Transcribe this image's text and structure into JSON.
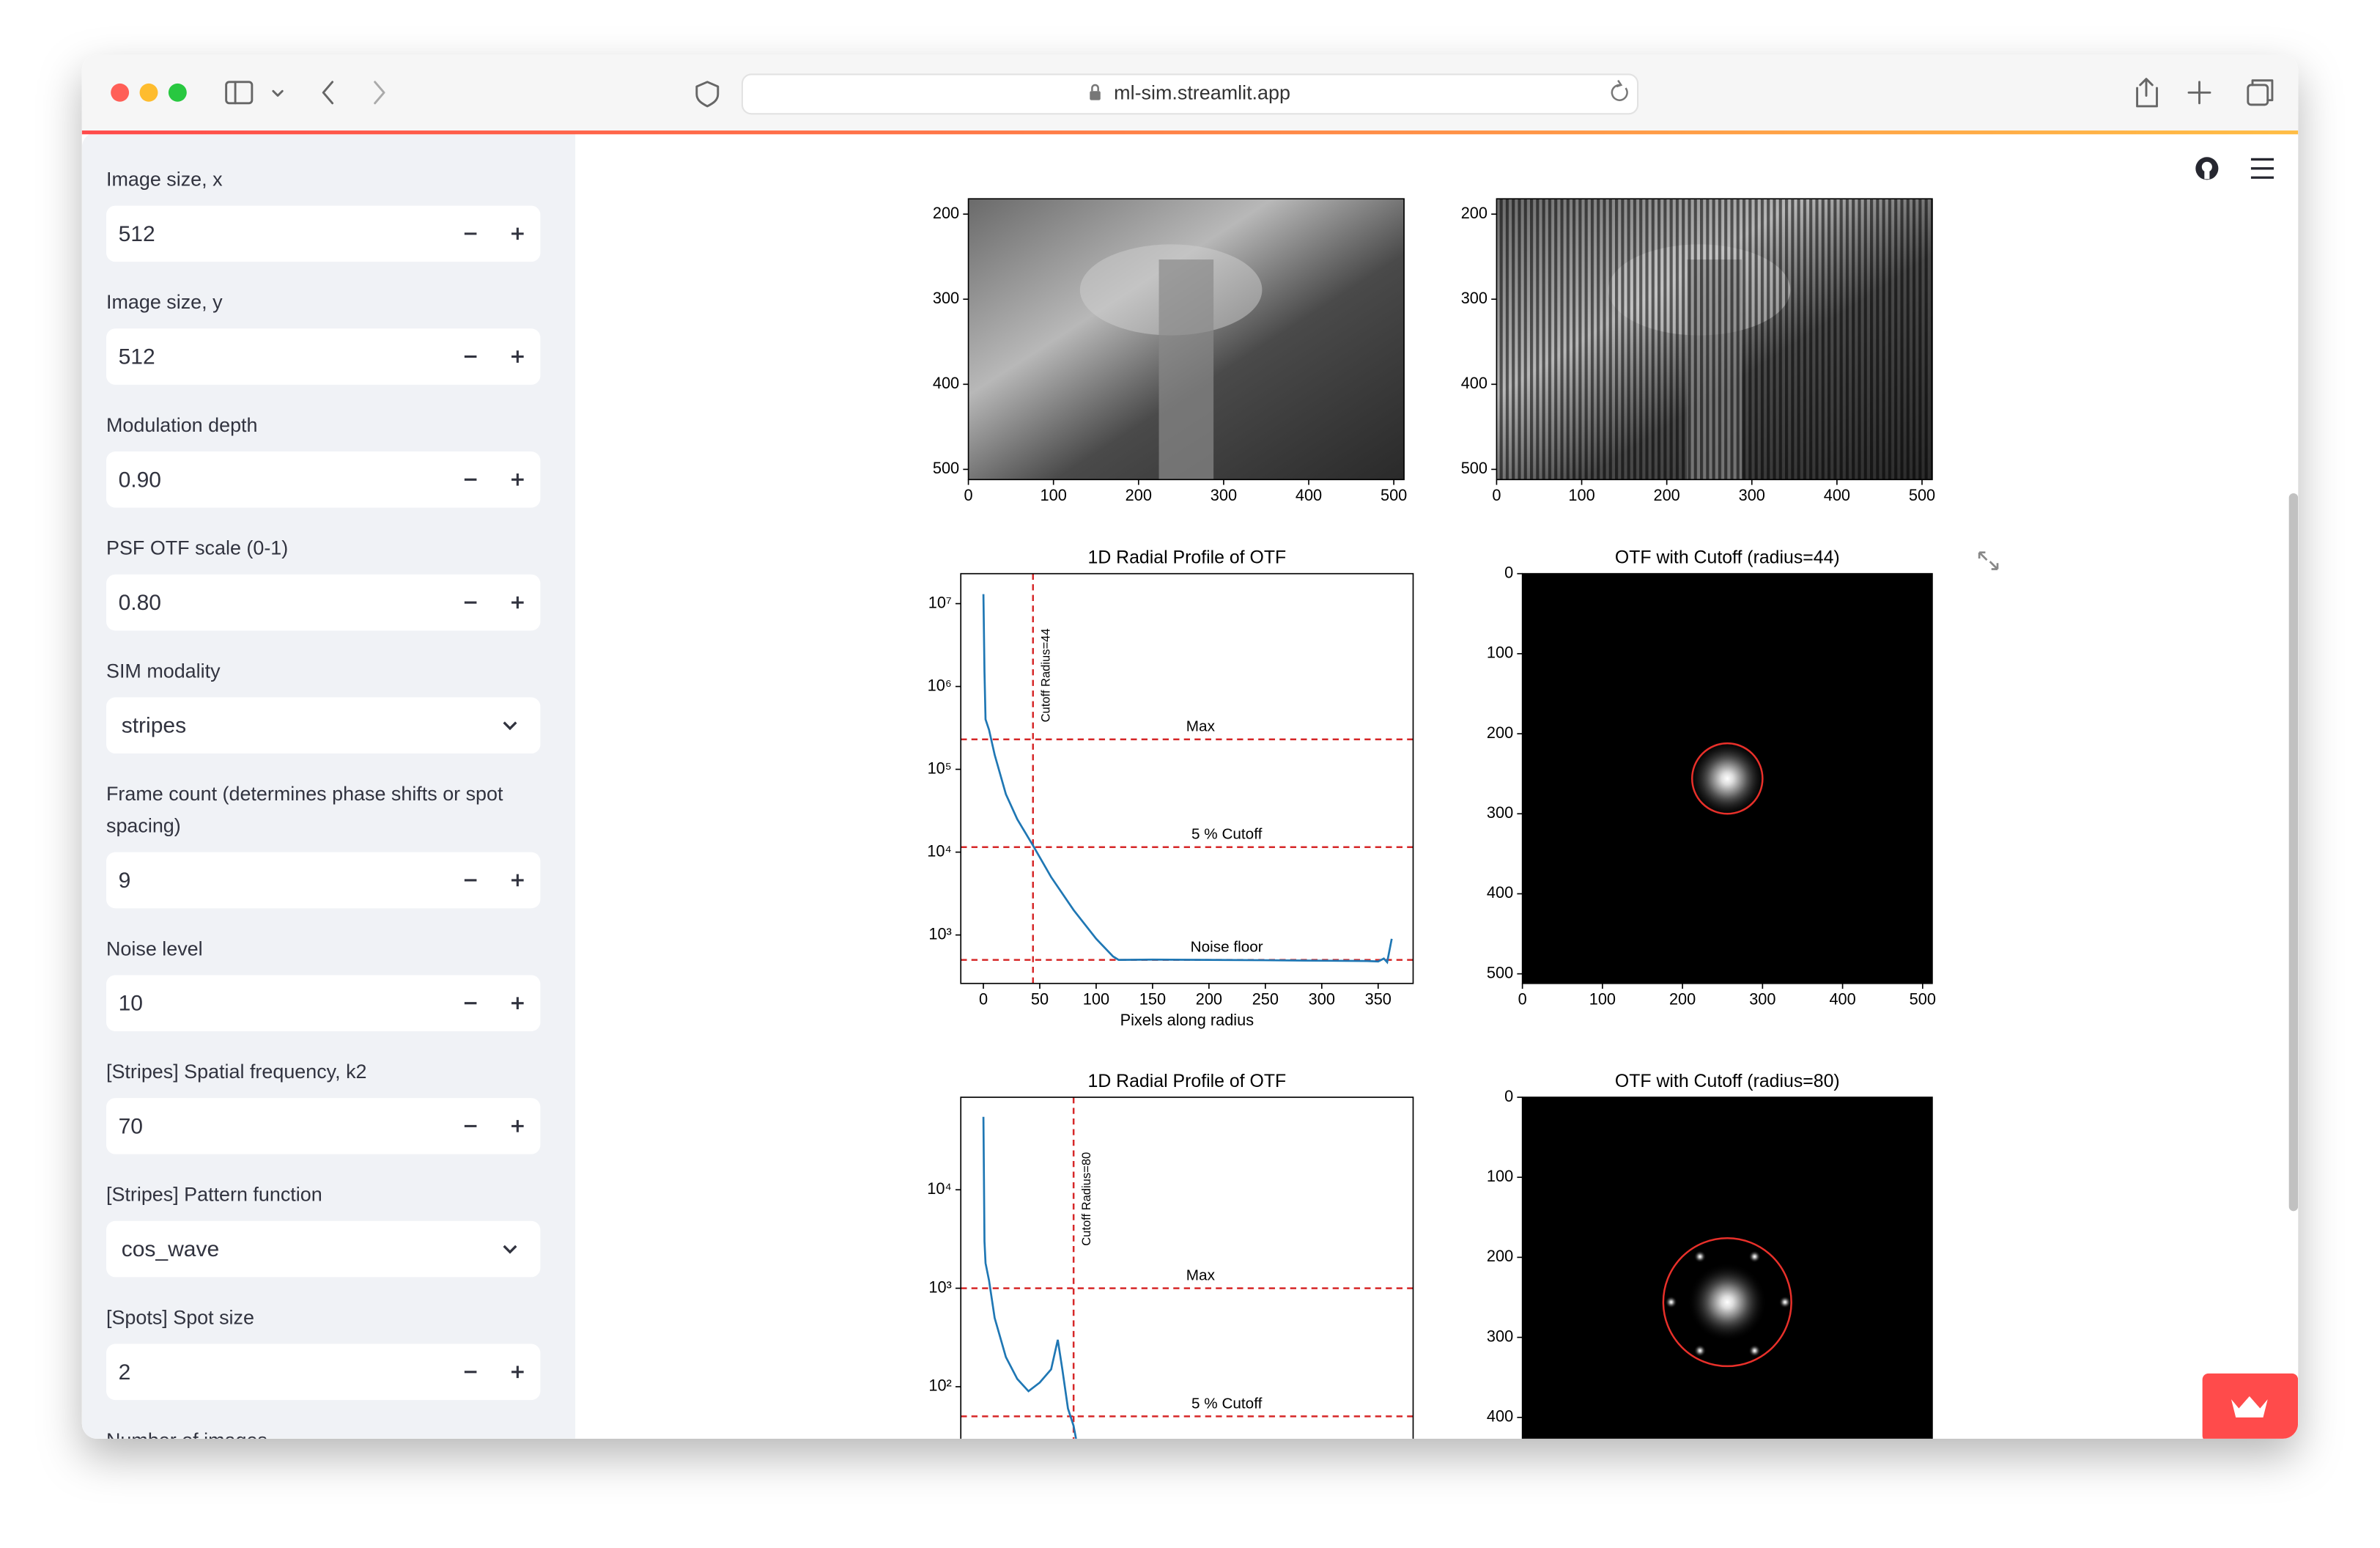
{
  "browser": {
    "url": "ml-sim.streamlit.app"
  },
  "sidebar": {
    "fields": [
      {
        "label": "Image size, x",
        "control": "number",
        "value": "512"
      },
      {
        "label": "Image size, y",
        "control": "number",
        "value": "512"
      },
      {
        "label": "Modulation depth",
        "control": "number",
        "value": "0.90"
      },
      {
        "label": "PSF OTF scale (0-1)",
        "control": "number",
        "value": "0.80"
      },
      {
        "label": "SIM modality",
        "control": "select",
        "value": "stripes"
      },
      {
        "label": [
          "Frame count (determines phase shifts or spot",
          "spacing)"
        ],
        "control": "number",
        "value": "9"
      },
      {
        "label": "Noise level",
        "control": "number",
        "value": "10"
      },
      {
        "label": "[Stripes] Spatial frequency, k2",
        "control": "number",
        "value": "70"
      },
      {
        "label": "[Stripes] Pattern function",
        "control": "select",
        "value": "cos_wave"
      },
      {
        "label": "[Spots] Spot size",
        "control": "number",
        "value": "2"
      },
      {
        "label": "Number of images"
      }
    ]
  },
  "plots": [
    {
      "kind": "image",
      "xlim": [
        0,
        512
      ],
      "ylim": [
        512,
        182
      ],
      "xticks": [
        0,
        100,
        200,
        300,
        400,
        500
      ],
      "yticks": [
        200,
        300,
        400,
        500
      ]
    },
    {
      "kind": "image",
      "xlim": [
        0,
        512
      ],
      "ylim": [
        512,
        182
      ],
      "xticks": [
        0,
        100,
        200,
        300,
        400,
        500
      ],
      "yticks": [
        200,
        300,
        400,
        500
      ]
    },
    {
      "kind": "profile",
      "title": "1D Radial Profile of OTF",
      "xlabel": "Pixels along radius",
      "log_y": true,
      "xlim": [
        -20,
        381
      ],
      "ylim": [
        260,
        23000000
      ],
      "xticks": [
        0,
        50,
        100,
        150,
        200,
        250,
        300,
        350
      ],
      "yticks": [
        {
          "value": 1000,
          "label": "10³"
        },
        {
          "value": 10000,
          "label": "10⁴"
        },
        {
          "value": 100000,
          "label": "10⁵"
        },
        {
          "value": 1000000,
          "label": "10⁶"
        },
        {
          "value": 10000000,
          "label": "10⁷"
        }
      ],
      "line_color": "#1f77b4",
      "level_color": "#d62728",
      "curve": {
        "x": [
          0,
          1,
          2,
          5,
          10,
          20,
          30,
          44,
          60,
          80,
          100,
          115,
          120,
          150,
          200,
          250,
          300,
          340,
          350,
          355,
          358,
          362
        ],
        "y": [
          13000000,
          1500000,
          400000,
          300000,
          150000,
          50000,
          25000,
          12000,
          5000,
          2000,
          900,
          550,
          500,
          505,
          500,
          495,
          490,
          485,
          480,
          520,
          470,
          900
        ]
      },
      "cutoff": {
        "radius": 44,
        "label": "Cutoff Radius=44"
      },
      "levels": [
        {
          "label": "Max",
          "value": 230000
        },
        {
          "label": "5 % Cutoff",
          "value": 11500
        },
        {
          "label": "Noise floor",
          "value": 500
        }
      ]
    },
    {
      "kind": "otf",
      "title": "OTF with Cutoff (radius=44)",
      "xlim": [
        0,
        512
      ],
      "ylim": [
        512,
        0
      ],
      "xticks": [
        0,
        100,
        200,
        300,
        400,
        500
      ],
      "yticks": [
        0,
        100,
        200,
        300,
        400,
        500
      ],
      "circle": {
        "x": 256,
        "y": 256,
        "r": 44
      },
      "circle_color": "#e8302a"
    },
    {
      "kind": "profile",
      "title": "1D Radial Profile of OTF",
      "log_y": true,
      "xlim": [
        -20,
        381
      ],
      "ylim": [
        6,
        87000
      ],
      "xticks": [],
      "yticks": [
        {
          "value": 100,
          "label": "10²"
        },
        {
          "value": 1000,
          "label": "10³"
        },
        {
          "value": 10000,
          "label": "10⁴"
        }
      ],
      "line_color": "#1f77b4",
      "level_color": "#d62728",
      "curve": {
        "x": [
          0,
          1,
          2,
          5,
          10,
          20,
          30,
          40,
          50,
          60,
          66,
          70,
          75,
          80,
          85
        ],
        "y": [
          55000,
          3000,
          1800,
          1200,
          500,
          200,
          120,
          90,
          110,
          150,
          300,
          150,
          60,
          40,
          20
        ]
      },
      "cutoff": {
        "radius": 80,
        "label": "Cutoff Radius=80"
      },
      "levels": [
        {
          "label": "Max",
          "value": 1000
        },
        {
          "label": "5 % Cutoff",
          "value": 50
        }
      ]
    },
    {
      "kind": "otf",
      "title": "OTF with Cutoff (radius=80)",
      "xlim": [
        0,
        512
      ],
      "ylim": [
        512,
        0
      ],
      "xticks": [],
      "yticks": [
        0,
        100,
        200,
        300,
        400
      ],
      "circle": {
        "x": 256,
        "y": 256,
        "r": 80
      },
      "circle_color": "#e8302a"
    }
  ]
}
